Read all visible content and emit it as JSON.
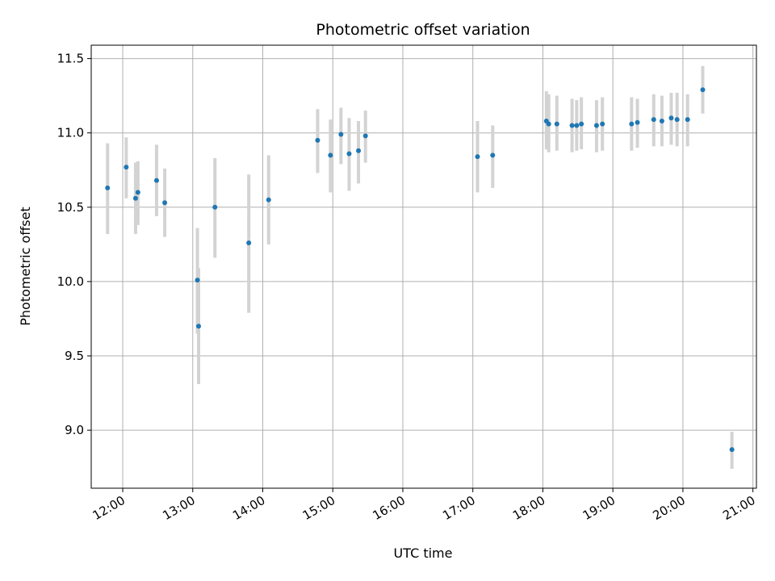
{
  "chart_data": {
    "type": "scatter",
    "title": "Photometric offset variation",
    "xlabel": "UTC time",
    "ylabel": "Photometric offset",
    "x_unit": "UTC hour",
    "xlim": [
      "11:33",
      "21:03"
    ],
    "ylim": [
      8.61,
      11.59
    ],
    "grid": true,
    "colors": {
      "point": "#1f77b4",
      "errorbar": "#d3d3d3",
      "grid": "#b0b0b0",
      "axis": "#000000"
    },
    "x_ticks": [
      {
        "x": "12:00",
        "label": "12:00"
      },
      {
        "x": "13:00",
        "label": "13:00"
      },
      {
        "x": "14:00",
        "label": "14:00"
      },
      {
        "x": "15:00",
        "label": "15:00"
      },
      {
        "x": "16:00",
        "label": "16:00"
      },
      {
        "x": "17:00",
        "label": "17:00"
      },
      {
        "x": "18:00",
        "label": "18:00"
      },
      {
        "x": "19:00",
        "label": "19:00"
      },
      {
        "x": "20:00",
        "label": "20:00"
      },
      {
        "x": "21:00",
        "label": "21:00"
      }
    ],
    "y_ticks": [
      {
        "y": 9.0,
        "label": "9.0"
      },
      {
        "y": 9.5,
        "label": "9.5"
      },
      {
        "y": 10.0,
        "label": "10.0"
      },
      {
        "y": 10.5,
        "label": "10.5"
      },
      {
        "y": 11.0,
        "label": "11.0"
      },
      {
        "y": 11.5,
        "label": "11.5"
      }
    ],
    "points": [
      {
        "x": "11:47",
        "y": 10.63,
        "y_low": 10.32,
        "y_high": 10.93
      },
      {
        "x": "12:03",
        "y": 10.77,
        "y_low": 10.56,
        "y_high": 10.97
      },
      {
        "x": "12:11",
        "y": 10.56,
        "y_low": 10.32,
        "y_high": 10.8
      },
      {
        "x": "12:13",
        "y": 10.6,
        "y_low": 10.38,
        "y_high": 10.81
      },
      {
        "x": "12:29",
        "y": 10.68,
        "y_low": 10.44,
        "y_high": 10.92
      },
      {
        "x": "12:36",
        "y": 10.53,
        "y_low": 10.3,
        "y_high": 10.76
      },
      {
        "x": "13:04",
        "y": 10.01,
        "y_low": 9.65,
        "y_high": 10.36
      },
      {
        "x": "13:05",
        "y": 9.7,
        "y_low": 9.31,
        "y_high": 10.09
      },
      {
        "x": "13:19",
        "y": 10.5,
        "y_low": 10.16,
        "y_high": 10.83
      },
      {
        "x": "13:48",
        "y": 10.26,
        "y_low": 9.79,
        "y_high": 10.72
      },
      {
        "x": "14:05",
        "y": 10.55,
        "y_low": 10.25,
        "y_high": 10.85
      },
      {
        "x": "14:47",
        "y": 10.95,
        "y_low": 10.73,
        "y_high": 11.16
      },
      {
        "x": "14:58",
        "y": 10.85,
        "y_low": 10.6,
        "y_high": 11.09
      },
      {
        "x": "15:07",
        "y": 10.99,
        "y_low": 10.79,
        "y_high": 11.17
      },
      {
        "x": "15:14",
        "y": 10.86,
        "y_low": 10.61,
        "y_high": 11.1
      },
      {
        "x": "15:22",
        "y": 10.88,
        "y_low": 10.66,
        "y_high": 11.08
      },
      {
        "x": "15:28",
        "y": 10.98,
        "y_low": 10.8,
        "y_high": 11.15
      },
      {
        "x": "17:04",
        "y": 10.84,
        "y_low": 10.6,
        "y_high": 11.08
      },
      {
        "x": "17:17",
        "y": 10.85,
        "y_low": 10.63,
        "y_high": 11.05
      },
      {
        "x": "18:03",
        "y": 11.08,
        "y_low": 10.89,
        "y_high": 11.28
      },
      {
        "x": "18:05",
        "y": 11.06,
        "y_low": 10.87,
        "y_high": 11.26
      },
      {
        "x": "18:12",
        "y": 11.06,
        "y_low": 10.88,
        "y_high": 11.25
      },
      {
        "x": "18:25",
        "y": 11.05,
        "y_low": 10.87,
        "y_high": 11.23
      },
      {
        "x": "18:29",
        "y": 11.05,
        "y_low": 10.88,
        "y_high": 11.22
      },
      {
        "x": "18:33",
        "y": 11.06,
        "y_low": 10.89,
        "y_high": 11.24
      },
      {
        "x": "18:46",
        "y": 11.05,
        "y_low": 10.87,
        "y_high": 11.22
      },
      {
        "x": "18:51",
        "y": 11.06,
        "y_low": 10.88,
        "y_high": 11.24
      },
      {
        "x": "19:16",
        "y": 11.06,
        "y_low": 10.88,
        "y_high": 11.24
      },
      {
        "x": "19:21",
        "y": 11.07,
        "y_low": 10.9,
        "y_high": 11.23
      },
      {
        "x": "19:35",
        "y": 11.09,
        "y_low": 10.91,
        "y_high": 11.26
      },
      {
        "x": "19:42",
        "y": 11.08,
        "y_low": 10.91,
        "y_high": 11.25
      },
      {
        "x": "19:50",
        "y": 11.1,
        "y_low": 10.92,
        "y_high": 11.27
      },
      {
        "x": "19:55",
        "y": 11.09,
        "y_low": 10.91,
        "y_high": 11.27
      },
      {
        "x": "20:04",
        "y": 11.09,
        "y_low": 10.91,
        "y_high": 11.26
      },
      {
        "x": "20:17",
        "y": 11.29,
        "y_low": 11.13,
        "y_high": 11.45
      },
      {
        "x": "20:42",
        "y": 8.87,
        "y_low": 8.74,
        "y_high": 8.99
      }
    ]
  }
}
